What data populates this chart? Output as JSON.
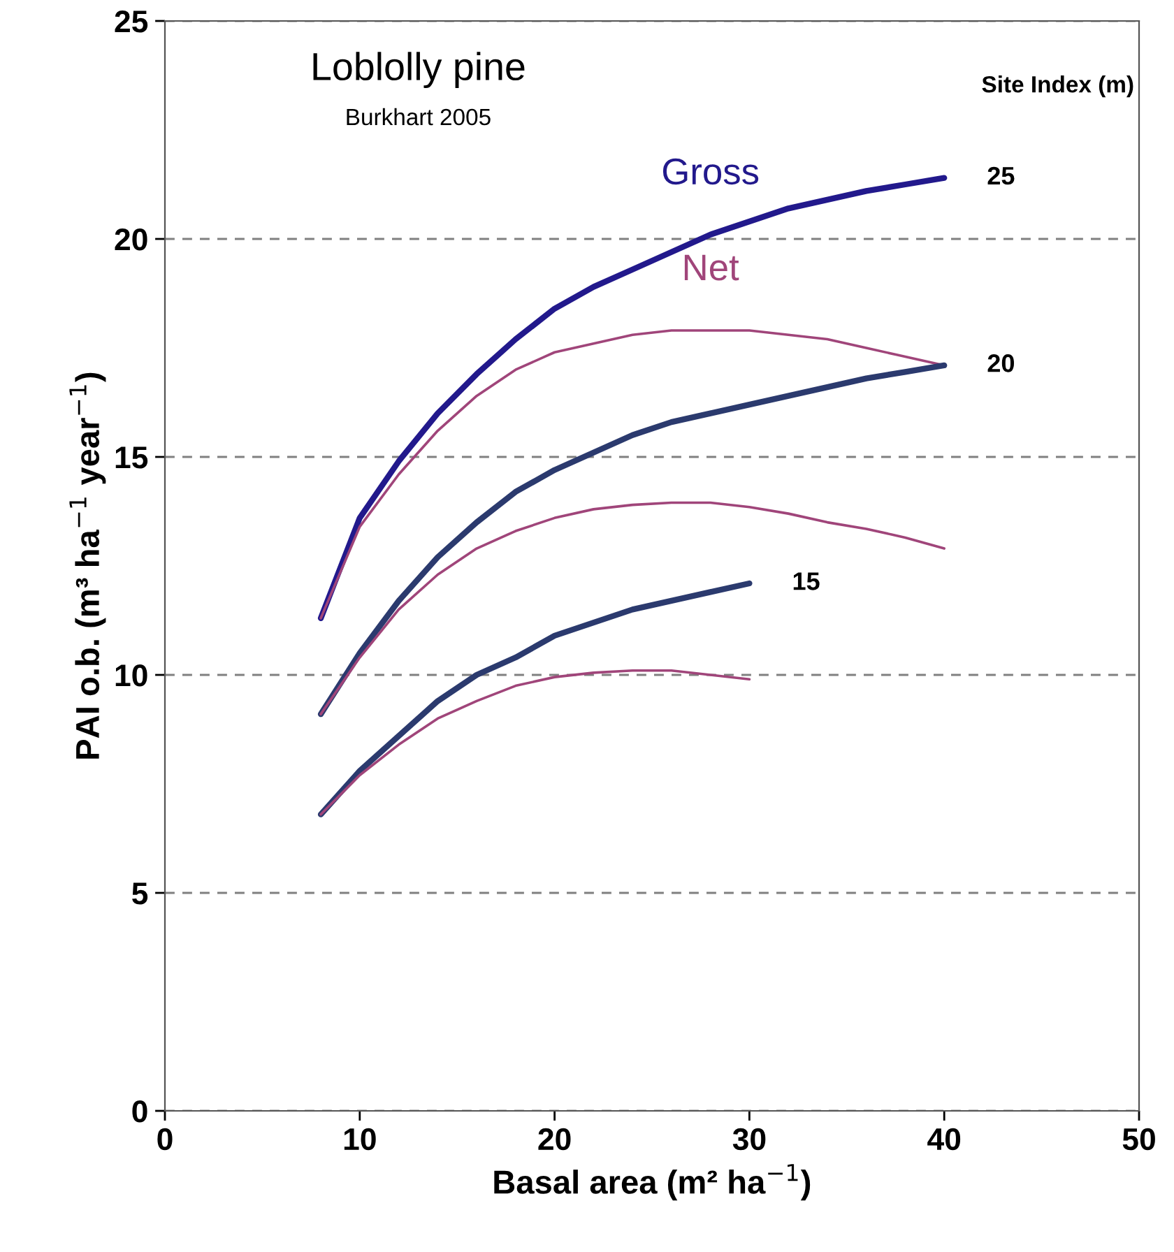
{
  "chart_data": {
    "type": "line",
    "title": "Loblolly pine",
    "subtitle": "Burkhart 2005",
    "xlabel": "Basal area (m² ha$^{−1}$)",
    "ylabel": "PAI o.b. (m³ ha$^{−1}$ year$^{−1}$)",
    "xlim": [
      0,
      50
    ],
    "xticks": [
      0,
      10,
      20,
      30,
      40,
      50
    ],
    "ylim": [
      0,
      25
    ],
    "yticks": [
      0,
      5,
      10,
      15,
      20,
      25
    ],
    "grid": "y",
    "legend": false,
    "marker": "none",
    "line_style": "solid",
    "series": [
      {
        "name": "Gross",
        "color": "#22198c",
        "x": [
          8,
          10,
          12,
          14,
          16,
          18,
          20,
          22,
          24,
          26,
          28,
          30,
          32,
          34,
          36,
          38,
          40
        ],
        "values": [
          11.3,
          13.6,
          14.9,
          16.0,
          16.9,
          17.7,
          18.4,
          18.9,
          19.3,
          19.7,
          20.1,
          20.4,
          20.7,
          20.9,
          21.1,
          21.25,
          21.4
        ]
      },
      {
        "name": "Net",
        "color": "#a0457a",
        "x": [
          8,
          10,
          12,
          14,
          16,
          18,
          20,
          22,
          24,
          26,
          28,
          30,
          32,
          34,
          36,
          38,
          40
        ],
        "values": [
          11.3,
          13.4,
          14.6,
          15.6,
          16.4,
          17.0,
          17.4,
          17.6,
          17.8,
          17.9,
          17.9,
          17.9,
          17.8,
          17.7,
          17.5,
          17.3,
          17.1
        ]
      },
      {
        "color": "#2b3a6e",
        "x": [
          8,
          10,
          12,
          14,
          16,
          18,
          20,
          22,
          24,
          26,
          28,
          30,
          32,
          34,
          36,
          38,
          40
        ],
        "values": [
          9.1,
          10.5,
          11.7,
          12.7,
          13.5,
          14.2,
          14.7,
          15.1,
          15.5,
          15.8,
          16.0,
          16.2,
          16.4,
          16.6,
          16.8,
          16.95,
          17.1
        ]
      },
      {
        "color": "#a0457a",
        "x": [
          8,
          10,
          12,
          14,
          16,
          18,
          20,
          22,
          24,
          26,
          28,
          30,
          32,
          34,
          36,
          38,
          40
        ],
        "values": [
          9.1,
          10.4,
          11.5,
          12.3,
          12.9,
          13.3,
          13.6,
          13.8,
          13.9,
          13.95,
          13.95,
          13.85,
          13.7,
          13.5,
          13.35,
          13.15,
          12.9
        ]
      },
      {
        "color": "#2b3a6e",
        "x": [
          8,
          10,
          12,
          14,
          16,
          18,
          20,
          22,
          24,
          26,
          28,
          30
        ],
        "values": [
          6.8,
          7.8,
          8.6,
          9.4,
          10.0,
          10.4,
          10.9,
          11.2,
          11.5,
          11.7,
          11.9,
          12.1
        ]
      },
      {
        "color": "#a0457a",
        "x": [
          8,
          10,
          12,
          14,
          16,
          18,
          20,
          22,
          24,
          26,
          28,
          30
        ],
        "values": [
          6.8,
          7.7,
          8.4,
          9.0,
          9.4,
          9.75,
          9.95,
          10.05,
          10.1,
          10.1,
          10.0,
          9.9
        ]
      }
    ],
    "annotations": [
      "Site Index (m)",
      "25",
      "20",
      "15"
    ]
  }
}
